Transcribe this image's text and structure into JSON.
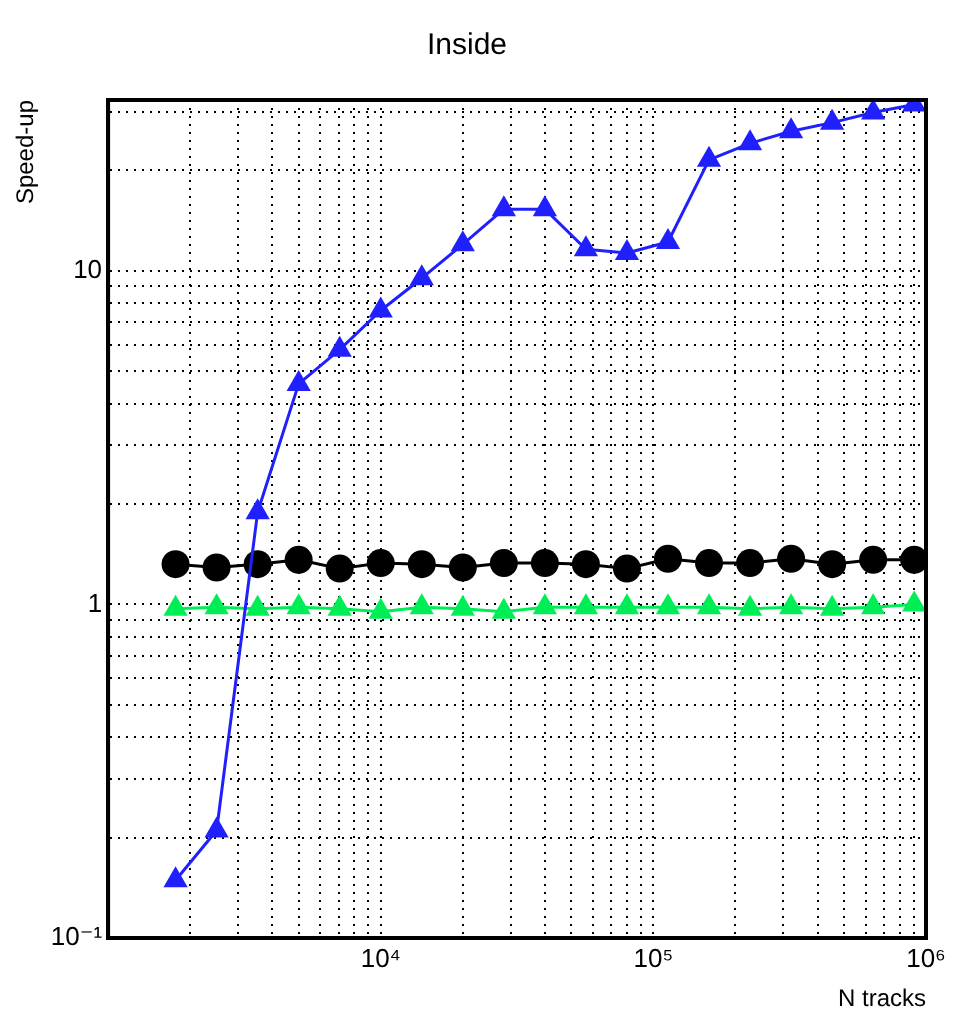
{
  "chart_data": {
    "type": "line",
    "title": "Inside",
    "xlabel": "N tracks",
    "ylabel": "Speed-up",
    "log": "xy",
    "grid": true,
    "legend": false,
    "line_style": "solid",
    "x": [
      1768,
      2500,
      3536,
      5000,
      7071,
      10000,
      14142,
      20000,
      28284,
      40000,
      56569,
      80000,
      113137,
      160000,
      226274,
      320000,
      452548,
      640000,
      905097
    ],
    "xlim": [
      1000,
      1000000
    ],
    "xticks": [
      {
        "value": 2000,
        "label": null
      },
      {
        "value": 3000,
        "label": null
      },
      {
        "value": 4000,
        "label": null
      },
      {
        "value": 5000,
        "label": null
      },
      {
        "value": 6000,
        "label": null
      },
      {
        "value": 7000,
        "label": null
      },
      {
        "value": 8000,
        "label": null
      },
      {
        "value": 9000,
        "label": null
      },
      {
        "value": 10000,
        "label": "10⁴"
      },
      {
        "value": 20000,
        "label": null
      },
      {
        "value": 30000,
        "label": null
      },
      {
        "value": 40000,
        "label": null
      },
      {
        "value": 50000,
        "label": null
      },
      {
        "value": 60000,
        "label": null
      },
      {
        "value": 70000,
        "label": null
      },
      {
        "value": 80000,
        "label": null
      },
      {
        "value": 90000,
        "label": null
      },
      {
        "value": 100000,
        "label": "10⁵"
      },
      {
        "value": 200000,
        "label": null
      },
      {
        "value": 300000,
        "label": null
      },
      {
        "value": 400000,
        "label": null
      },
      {
        "value": 500000,
        "label": null
      },
      {
        "value": 600000,
        "label": null
      },
      {
        "value": 700000,
        "label": null
      },
      {
        "value": 800000,
        "label": null
      },
      {
        "value": 900000,
        "label": null
      },
      {
        "value": 1000000,
        "label": "10⁶"
      }
    ],
    "ylim": [
      0.1,
      32.5
    ],
    "yticks": [
      {
        "value": 0.1,
        "label": "10⁻¹"
      },
      {
        "value": 0.2,
        "label": null
      },
      {
        "value": 0.3,
        "label": null
      },
      {
        "value": 0.4,
        "label": null
      },
      {
        "value": 0.5,
        "label": null
      },
      {
        "value": 0.6,
        "label": null
      },
      {
        "value": 0.7,
        "label": null
      },
      {
        "value": 0.8,
        "label": null
      },
      {
        "value": 0.9,
        "label": null
      },
      1,
      {
        "value": 2,
        "label": null
      },
      {
        "value": 3,
        "label": null
      },
      {
        "value": 4,
        "label": null
      },
      {
        "value": 5,
        "label": null
      },
      {
        "value": 6,
        "label": null
      },
      {
        "value": 7,
        "label": null
      },
      {
        "value": 8,
        "label": null
      },
      {
        "value": 9,
        "label": null
      },
      10,
      {
        "value": 20,
        "label": null
      },
      {
        "value": 30,
        "label": null
      }
    ],
    "series": [
      {
        "color": "#2020ff",
        "marker": "triangle",
        "values": [
          0.149,
          0.21,
          1.89,
          4.58,
          5.8,
          7.6,
          9.5,
          12.0,
          15.3,
          15.3,
          11.6,
          11.3,
          12.2,
          21.5,
          24.1,
          26.2,
          27.8,
          29.8,
          31.5
        ]
      },
      {
        "color": "#000000",
        "marker": "circle",
        "values": [
          1.32,
          1.29,
          1.32,
          1.36,
          1.28,
          1.33,
          1.32,
          1.29,
          1.33,
          1.33,
          1.32,
          1.28,
          1.37,
          1.33,
          1.33,
          1.37,
          1.32,
          1.36,
          1.36
        ]
      },
      {
        "color": "#00ee55",
        "marker": "triangle",
        "values": [
          0.97,
          0.98,
          0.97,
          0.98,
          0.97,
          0.95,
          0.98,
          0.97,
          0.95,
          0.98,
          0.98,
          0.98,
          0.98,
          0.98,
          0.97,
          0.98,
          0.97,
          0.98,
          1.0
        ]
      }
    ]
  }
}
